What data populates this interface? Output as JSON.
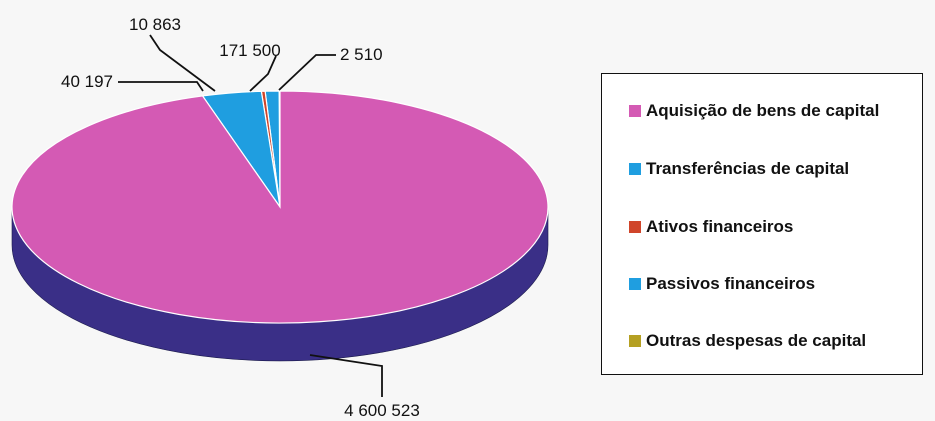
{
  "chart_data": {
    "type": "pie",
    "title": "",
    "slices": [
      {
        "label": "Aquisição de bens de capital",
        "value": 4600523,
        "value_label": "4 600 523",
        "color": "#d45ab4",
        "side_color": "#3a2f87"
      },
      {
        "label": "Transferências de capital",
        "value": 171500,
        "value_label": "171 500",
        "color": "#1f9ee0",
        "side_color": "#116da0"
      },
      {
        "label": "Ativos financeiros",
        "value": 10863,
        "value_label": "10 863",
        "color": "#d0452a",
        "side_color": "#8e2b18"
      },
      {
        "label": "Passivos financeiros",
        "value": 40197,
        "value_label": "40 197",
        "color": "#1f9ee0",
        "side_color": "#116da0"
      },
      {
        "label": "Outras despesas de capital",
        "value": 2510,
        "value_label": "2 510",
        "color": "#b5a022",
        "side_color": "#7d6e16"
      }
    ],
    "legend_position": "right",
    "style": "3d"
  }
}
